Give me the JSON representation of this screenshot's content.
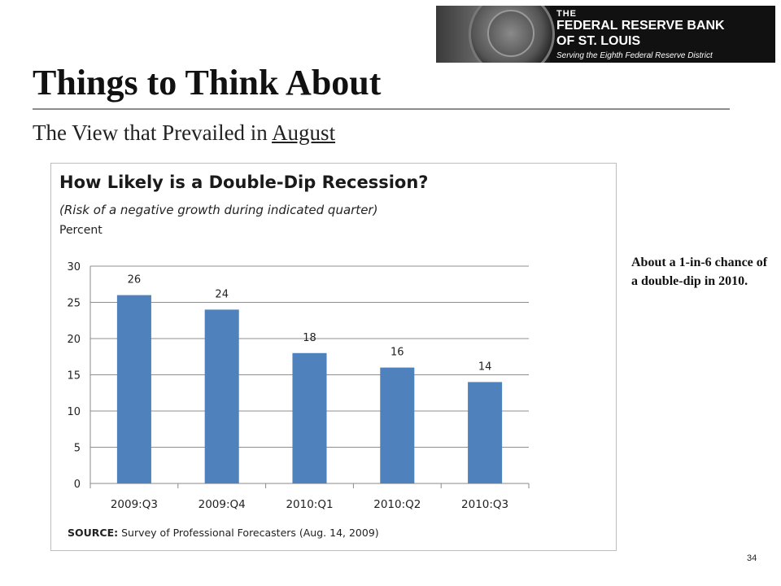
{
  "logo": {
    "line1": "THE",
    "line2": "FEDERAL RESERVE BANK",
    "line3": "OF ST. LOUIS",
    "line4": "Serving the Eighth Federal Reserve District"
  },
  "slide": {
    "title": "Things to Think About",
    "subtitle_prefix": "The View that Prevailed in ",
    "subtitle_emphasis": "August",
    "note": "About a 1-in-6 chance of a double-dip in 2010.",
    "page_number": "34"
  },
  "chart_data": {
    "type": "bar",
    "title": "How Likely is a Double-Dip Recession?",
    "subtitle": "(Risk of a negative growth during indicated quarter)",
    "ylabel": "Percent",
    "categories": [
      "2009:Q3",
      "2009:Q4",
      "2010:Q1",
      "2010:Q2",
      "2010:Q3"
    ],
    "values": [
      26,
      24,
      18,
      16,
      14
    ],
    "data_labels": [
      "26",
      "24",
      "18",
      "16",
      "14"
    ],
    "ylim": [
      0,
      30
    ],
    "yticks": [
      0,
      5,
      10,
      15,
      20,
      25,
      30
    ],
    "grid": true,
    "bar_color": "#4f81bd",
    "source_label": "SOURCE:",
    "source_text": " Survey of Professional Forecasters (Aug. 14, 2009)"
  }
}
